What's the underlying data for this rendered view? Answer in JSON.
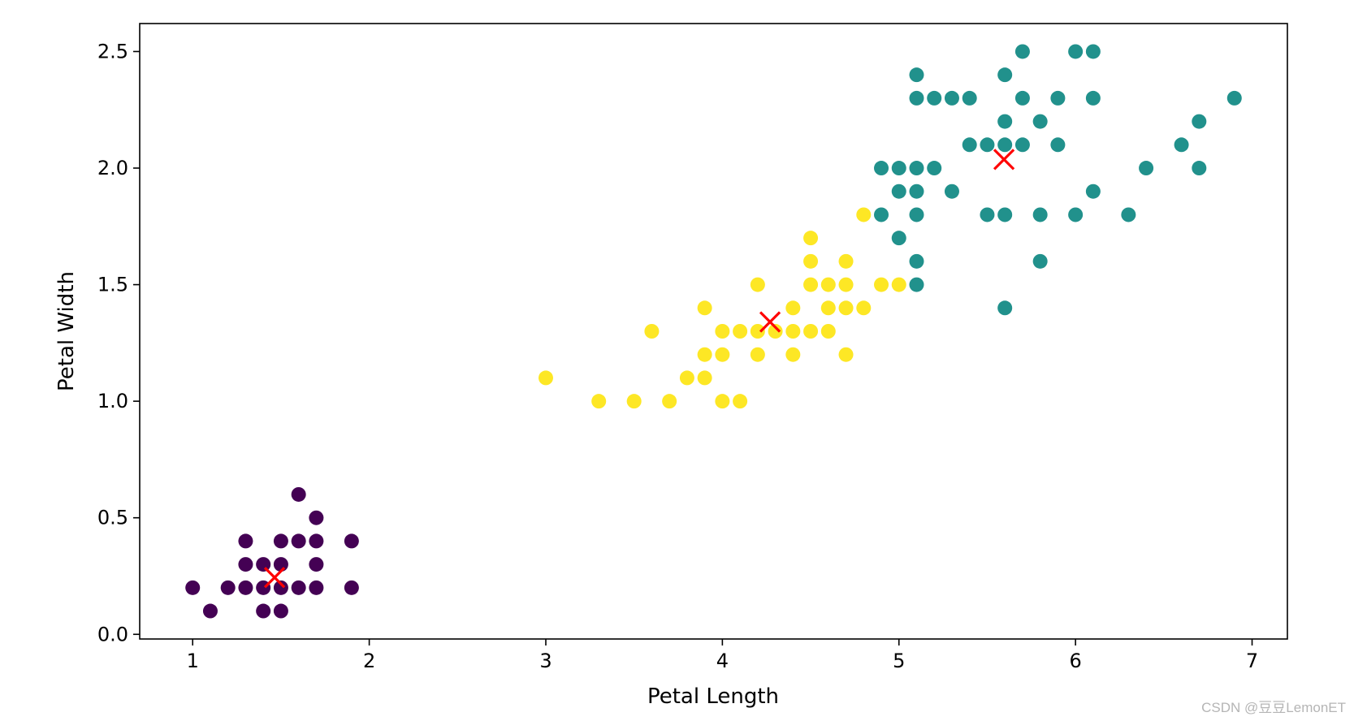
{
  "watermark": "CSDN @豆豆LemonET",
  "chart_data": {
    "type": "scatter",
    "title": "",
    "xlabel": "Petal Length",
    "ylabel": "Petal Width",
    "xlim": [
      0.7,
      7.2
    ],
    "ylim": [
      -0.02,
      2.62
    ],
    "xticks": [
      1,
      2,
      3,
      4,
      5,
      6,
      7
    ],
    "xtick_labels": [
      "1",
      "2",
      "3",
      "4",
      "5",
      "6",
      "7"
    ],
    "yticks": [
      0.0,
      0.5,
      1.0,
      1.5,
      2.0,
      2.5
    ],
    "ytick_labels": [
      "0.0",
      "0.5",
      "1.0",
      "1.5",
      "2.0",
      "2.5"
    ],
    "grid": false,
    "series": [
      {
        "color": "#440154",
        "points": [
          [
            1.0,
            0.2
          ],
          [
            1.1,
            0.1
          ],
          [
            1.2,
            0.2
          ],
          [
            1.3,
            0.2
          ],
          [
            1.3,
            0.3
          ],
          [
            1.3,
            0.4
          ],
          [
            1.4,
            0.1
          ],
          [
            1.4,
            0.2
          ],
          [
            1.4,
            0.3
          ],
          [
            1.5,
            0.1
          ],
          [
            1.5,
            0.2
          ],
          [
            1.5,
            0.3
          ],
          [
            1.5,
            0.4
          ],
          [
            1.6,
            0.2
          ],
          [
            1.6,
            0.4
          ],
          [
            1.6,
            0.6
          ],
          [
            1.7,
            0.2
          ],
          [
            1.7,
            0.3
          ],
          [
            1.7,
            0.4
          ],
          [
            1.7,
            0.5
          ],
          [
            1.9,
            0.2
          ],
          [
            1.9,
            0.4
          ]
        ]
      },
      {
        "color": "#fde725",
        "points": [
          [
            3.0,
            1.1
          ],
          [
            3.3,
            1.0
          ],
          [
            3.5,
            1.0
          ],
          [
            3.6,
            1.3
          ],
          [
            3.7,
            1.0
          ],
          [
            3.8,
            1.1
          ],
          [
            3.9,
            1.1
          ],
          [
            3.9,
            1.2
          ],
          [
            3.9,
            1.4
          ],
          [
            4.0,
            1.0
          ],
          [
            4.0,
            1.2
          ],
          [
            4.0,
            1.3
          ],
          [
            4.1,
            1.0
          ],
          [
            4.1,
            1.3
          ],
          [
            4.2,
            1.2
          ],
          [
            4.2,
            1.3
          ],
          [
            4.2,
            1.5
          ],
          [
            4.3,
            1.3
          ],
          [
            4.4,
            1.2
          ],
          [
            4.4,
            1.3
          ],
          [
            4.4,
            1.4
          ],
          [
            4.5,
            1.3
          ],
          [
            4.5,
            1.5
          ],
          [
            4.5,
            1.6
          ],
          [
            4.5,
            1.7
          ],
          [
            4.6,
            1.3
          ],
          [
            4.6,
            1.4
          ],
          [
            4.6,
            1.5
          ],
          [
            4.7,
            1.2
          ],
          [
            4.7,
            1.4
          ],
          [
            4.7,
            1.5
          ],
          [
            4.7,
            1.6
          ],
          [
            4.8,
            1.4
          ],
          [
            4.8,
            1.8
          ],
          [
            4.9,
            1.5
          ],
          [
            5.0,
            1.5
          ]
        ]
      },
      {
        "color": "#21918c",
        "points": [
          [
            4.9,
            1.8
          ],
          [
            4.9,
            2.0
          ],
          [
            5.0,
            1.7
          ],
          [
            5.0,
            1.9
          ],
          [
            5.0,
            2.0
          ],
          [
            5.1,
            1.5
          ],
          [
            5.1,
            1.6
          ],
          [
            5.1,
            1.8
          ],
          [
            5.1,
            1.9
          ],
          [
            5.1,
            2.0
          ],
          [
            5.1,
            2.3
          ],
          [
            5.1,
            2.4
          ],
          [
            5.2,
            2.0
          ],
          [
            5.2,
            2.3
          ],
          [
            5.3,
            1.9
          ],
          [
            5.3,
            2.3
          ],
          [
            5.4,
            2.1
          ],
          [
            5.4,
            2.3
          ],
          [
            5.5,
            1.8
          ],
          [
            5.5,
            2.1
          ],
          [
            5.6,
            1.4
          ],
          [
            5.6,
            1.8
          ],
          [
            5.6,
            2.1
          ],
          [
            5.6,
            2.2
          ],
          [
            5.6,
            2.4
          ],
          [
            5.7,
            2.1
          ],
          [
            5.7,
            2.3
          ],
          [
            5.7,
            2.5
          ],
          [
            5.8,
            1.6
          ],
          [
            5.8,
            1.8
          ],
          [
            5.8,
            2.2
          ],
          [
            5.9,
            2.1
          ],
          [
            5.9,
            2.3
          ],
          [
            6.0,
            1.8
          ],
          [
            6.0,
            2.5
          ],
          [
            6.1,
            1.9
          ],
          [
            6.1,
            2.3
          ],
          [
            6.1,
            2.5
          ],
          [
            6.3,
            1.8
          ],
          [
            6.4,
            2.0
          ],
          [
            6.6,
            2.1
          ],
          [
            6.7,
            2.0
          ],
          [
            6.7,
            2.2
          ],
          [
            6.9,
            2.3
          ]
        ]
      }
    ],
    "centroids": {
      "color": "#ff0000",
      "marker": "x",
      "points": [
        [
          1.464,
          0.244
        ],
        [
          4.27,
          1.34
        ],
        [
          5.595,
          2.037
        ]
      ]
    }
  }
}
